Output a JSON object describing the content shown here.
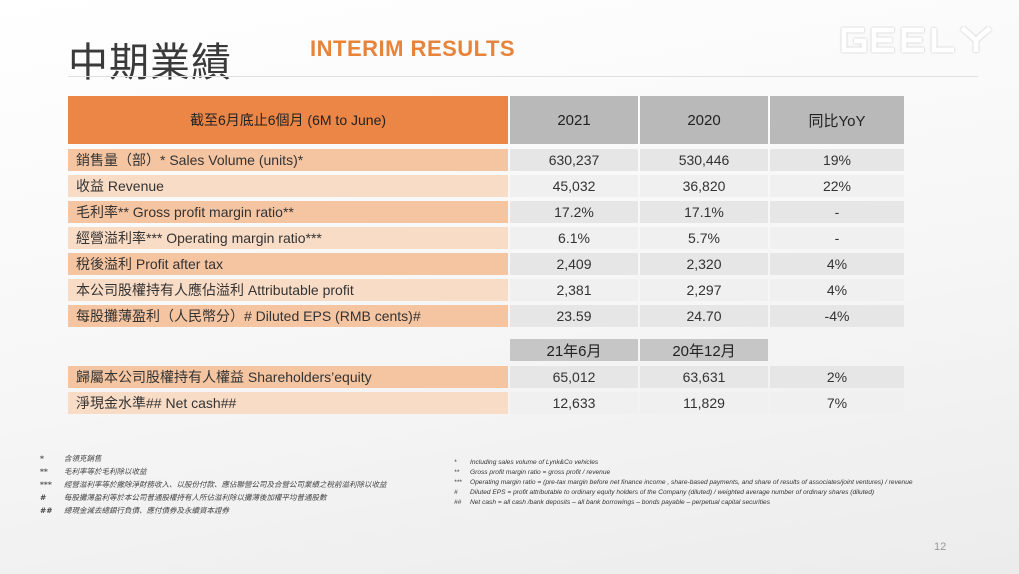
{
  "header": {
    "title_zh": "中期業績",
    "title_en": "INTERIM RESULTS",
    "logo_text": "GEELY"
  },
  "table": {
    "header_label": "截至6月底止6個月  (6M to June)",
    "col1": "2021",
    "col2": "2020",
    "col3": "同比YoY",
    "rows": [
      {
        "label": "銷售量（部）*   Sales Volume (units)*",
        "v1": "630,237",
        "v2": "530,446",
        "v3": "19%"
      },
      {
        "label": "收益 Revenue",
        "v1": "45,032",
        "v2": "36,820",
        "v3": "22%"
      },
      {
        "label": "毛利率** Gross profit margin ratio**",
        "v1": "17.2%",
        "v2": "17.1%",
        "v3": "-"
      },
      {
        "label": "經營溢利率*** Operating margin ratio***",
        "v1": "6.1%",
        "v2": "5.7%",
        "v3": "-"
      },
      {
        "label": "稅後溢利  Profit after tax",
        "v1": "2,409",
        "v2": "2,320",
        "v3": "4%"
      },
      {
        "label": "本公司股權持有人應佔溢利 Attributable profit",
        "v1": "2,381",
        "v2": "2,297",
        "v3": "4%"
      },
      {
        "label": "每股攤薄盈利（人民幣分）# Diluted EPS (RMB cents)#",
        "v1": "23.59",
        "v2": "24.70",
        "v3": "-4%"
      }
    ],
    "header2_col1": "21年6月",
    "header2_col2": "20年12月",
    "rows2": [
      {
        "label": "歸屬本公司股權持有人權益 Shareholders’equity",
        "v1": "65,012",
        "v2": "63,631",
        "v3": "2%"
      },
      {
        "label": "淨現金水準## Net cash##",
        "v1": "12,633",
        "v2": "11,829",
        "v3": "7%"
      }
    ]
  },
  "notes_zh": [
    {
      "key": "*",
      "text": "含領克銷售"
    },
    {
      "key": "**",
      "text": "毛利率等於毛利除以收益"
    },
    {
      "key": "***",
      "text": "經營溢利率等於撇除淨財務收入、以股份付款、應佔聯營公司及合營公司業績之稅前溢利除以收益"
    },
    {
      "key": "#",
      "text": "每股攤薄盈利等於本公司普通股權持有人所佔溢利除以攤薄後加權平均普通股數"
    },
    {
      "key": "##",
      "text": "總現金減去總銀行負債、應付債券及永續資本證券"
    }
  ],
  "notes_en": [
    {
      "key": "*",
      "text": "Including sales volume of Lynk&Co vehicles"
    },
    {
      "key": "**",
      "text": "Gross profit margin ratio = gross profit / revenue"
    },
    {
      "key": "***",
      "text": "Operating margin ratio = (pre-tax margin before net finance income , share-based payments, and share of results of associates/joint ventures) / revenue"
    },
    {
      "key": "#",
      "text": "Diluted EPS = profit attributable to ordinary equity holders of the Company (diluted) / weighted average number of ordinary shares (diluted)"
    },
    {
      "key": "##",
      "text": "Net cash = all cash /bank deposits – all bank borrowings – bonds payable – perpetual capital securities"
    }
  ],
  "page_number": "12"
}
